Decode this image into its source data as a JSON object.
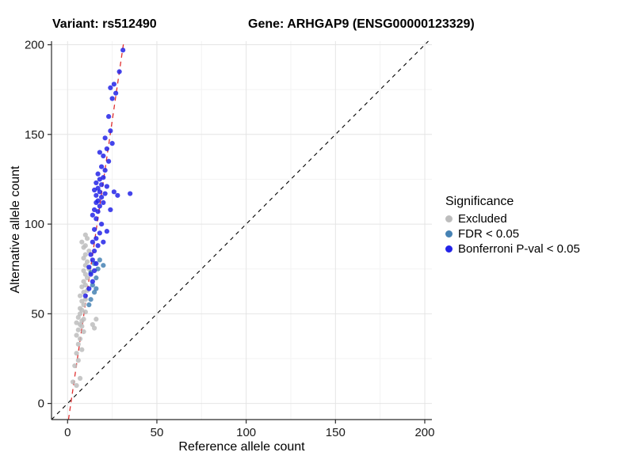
{
  "titles": {
    "left": "Variant: rs512490",
    "right": "Gene: ARHGAP9 (ENSG00000123329)"
  },
  "chart_data": {
    "type": "scatter",
    "title": "",
    "xlabel": "Reference allele count",
    "ylabel": "Alternative allele count",
    "xlim": [
      -9,
      204
    ],
    "ylim": [
      -9,
      202
    ],
    "xticks": [
      0,
      50,
      100,
      150,
      200
    ],
    "yticks": [
      0,
      50,
      100,
      150,
      200
    ],
    "grid": true,
    "legend": {
      "title": "Significance",
      "position": "right"
    },
    "colors": {
      "excluded": "#bdbdbd",
      "fdr": "#4682b4",
      "bonferroni": "#2323e8",
      "identity_line": "#000000",
      "fit_line": "#e03030",
      "gridline": "#e4e4e4",
      "minor_gridline": "#f3f3f3",
      "axis": "#2b2b2b"
    },
    "series": [
      {
        "name": "Excluded",
        "color": "#bdbdbd",
        "points": [
          [
            3,
            12
          ],
          [
            5,
            10
          ],
          [
            7,
            14
          ],
          [
            4,
            21
          ],
          [
            6,
            24
          ],
          [
            5,
            28
          ],
          [
            8,
            30
          ],
          [
            6,
            33
          ],
          [
            7,
            36
          ],
          [
            5,
            38
          ],
          [
            9,
            40
          ],
          [
            6,
            41
          ],
          [
            8,
            43
          ],
          [
            7,
            44
          ],
          [
            5,
            45
          ],
          [
            8,
            46
          ],
          [
            9,
            47
          ],
          [
            6,
            48
          ],
          [
            7,
            50
          ],
          [
            10,
            51
          ],
          [
            8,
            52
          ],
          [
            7,
            53
          ],
          [
            9,
            55
          ],
          [
            8,
            57
          ],
          [
            10,
            58
          ],
          [
            7,
            60
          ],
          [
            9,
            62
          ],
          [
            11,
            63
          ],
          [
            8,
            65
          ],
          [
            10,
            66
          ],
          [
            9,
            68
          ],
          [
            11,
            70
          ],
          [
            10,
            72
          ],
          [
            9,
            74
          ],
          [
            12,
            75
          ],
          [
            10,
            77
          ],
          [
            11,
            79
          ],
          [
            9,
            81
          ],
          [
            10,
            83
          ],
          [
            12,
            85
          ],
          [
            9,
            87
          ],
          [
            10,
            88
          ],
          [
            8,
            90
          ],
          [
            11,
            92
          ],
          [
            10,
            94
          ],
          [
            14,
            44
          ],
          [
            16,
            47
          ],
          [
            15,
            42
          ]
        ]
      },
      {
        "name": "FDR < 0.05",
        "color": "#4682b4",
        "points": [
          [
            12,
            55
          ],
          [
            13,
            58
          ],
          [
            15,
            62
          ],
          [
            16,
            64
          ],
          [
            14,
            66
          ],
          [
            16,
            70
          ],
          [
            13,
            73
          ],
          [
            17,
            75
          ],
          [
            15,
            78
          ],
          [
            18,
            80
          ],
          [
            20,
            77
          ]
        ]
      },
      {
        "name": "Bonferroni P-val < 0.05",
        "color": "#2323e8",
        "points": [
          [
            10,
            60
          ],
          [
            12,
            64
          ],
          [
            14,
            68
          ],
          [
            13,
            72
          ],
          [
            15,
            74
          ],
          [
            12,
            76
          ],
          [
            16,
            78
          ],
          [
            14,
            80
          ],
          [
            13,
            83
          ],
          [
            15,
            85
          ],
          [
            17,
            88
          ],
          [
            14,
            90
          ],
          [
            20,
            90
          ],
          [
            16,
            92
          ],
          [
            18,
            95
          ],
          [
            22,
            96
          ],
          [
            15,
            97
          ],
          [
            19,
            100
          ],
          [
            16,
            103
          ],
          [
            14,
            105
          ],
          [
            17,
            107
          ],
          [
            15,
            108
          ],
          [
            24,
            108
          ],
          [
            18,
            110
          ],
          [
            16,
            112
          ],
          [
            20,
            112
          ],
          [
            17,
            113
          ],
          [
            19,
            115
          ],
          [
            16,
            116
          ],
          [
            28,
            116
          ],
          [
            21,
            117
          ],
          [
            35,
            117
          ],
          [
            18,
            118
          ],
          [
            26,
            118
          ],
          [
            15,
            119
          ],
          [
            17,
            120
          ],
          [
            22,
            121
          ],
          [
            19,
            122
          ],
          [
            16,
            123
          ],
          [
            18,
            125
          ],
          [
            20,
            126
          ],
          [
            17,
            128
          ],
          [
            21,
            130
          ],
          [
            19,
            132
          ],
          [
            23,
            135
          ],
          [
            20,
            138
          ],
          [
            18,
            140
          ],
          [
            22,
            142
          ],
          [
            25,
            145
          ],
          [
            21,
            148
          ],
          [
            24,
            152
          ],
          [
            23,
            160
          ],
          [
            25,
            170
          ],
          [
            27,
            173
          ],
          [
            24,
            176
          ],
          [
            26,
            178
          ],
          [
            29,
            185
          ],
          [
            31,
            197
          ]
        ]
      }
    ],
    "lines": [
      {
        "name": "identity-line",
        "color": "#000000",
        "dash": "5 5",
        "width": 1.1,
        "from": [
          -9,
          -9
        ],
        "to": [
          202,
          202
        ]
      },
      {
        "name": "fit-line",
        "color": "#e03030",
        "dash": "6 5",
        "width": 1.3,
        "from": [
          0.5,
          -9
        ],
        "to": [
          31.5,
          202
        ]
      }
    ]
  }
}
